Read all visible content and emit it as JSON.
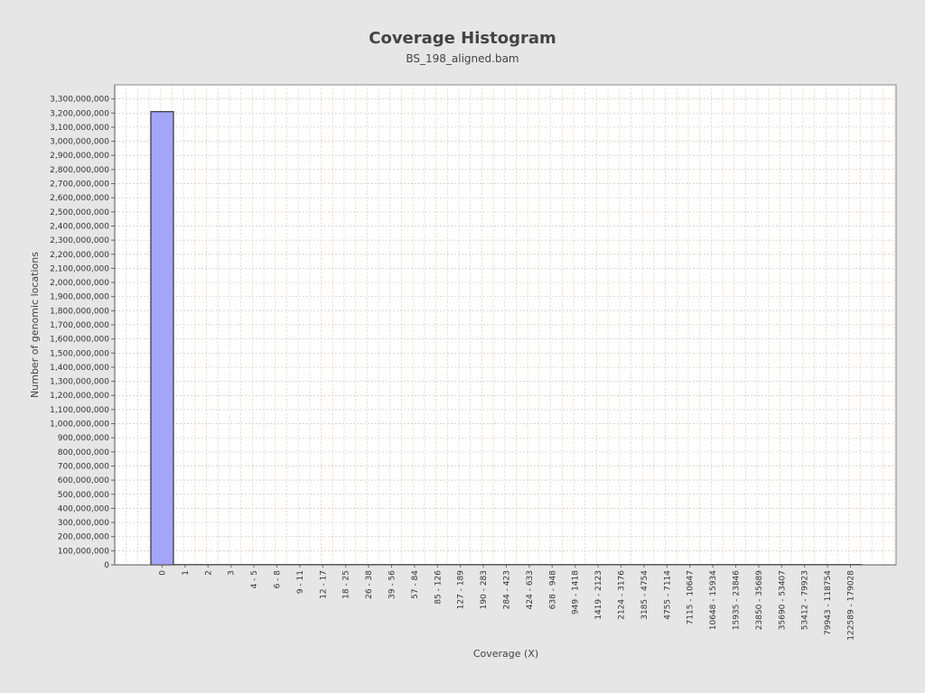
{
  "colors": {
    "background": "#e6e6e6",
    "plot_background": "#ffffff",
    "bar_fill": "#a4a4f9",
    "bar_stroke": "#333333",
    "grid_vertical": "#f2c9a8",
    "grid_horizontal": "#c8c8c8"
  },
  "chart_data": {
    "type": "bar",
    "title": "Coverage Histogram",
    "subtitle": "BS_198_aligned.bam",
    "xlabel": "Coverage (X)",
    "ylabel": "Number of genomic locations",
    "ylim": [
      0,
      3400000000
    ],
    "y_tick_step": 100000000,
    "grid": true,
    "legend": "none",
    "categories": [
      "0",
      "1",
      "2",
      "3",
      "4 - 5",
      "6 - 8",
      "9 - 11",
      "12 - 17",
      "18 - 25",
      "26 - 38",
      "39 - 56",
      "57 - 84",
      "85 - 126",
      "127 - 189",
      "190 - 283",
      "284 - 423",
      "424 - 633",
      "638 - 948",
      "949 - 1418",
      "1419 - 2123",
      "2124 - 3176",
      "3185 - 4754",
      "4755 - 7114",
      "7115 - 10647",
      "10648 - 15934",
      "15935 - 23846",
      "23850 - 35689",
      "35690 - 53407",
      "53412 - 79923",
      "79943 - 118754",
      "122589 - 179028"
    ],
    "values": [
      3210000000,
      0,
      0,
      0,
      0,
      0,
      0,
      0,
      0,
      0,
      0,
      0,
      0,
      0,
      0,
      0,
      0,
      0,
      0,
      0,
      0,
      0,
      0,
      0,
      0,
      0,
      0,
      0,
      0,
      0,
      0
    ]
  }
}
